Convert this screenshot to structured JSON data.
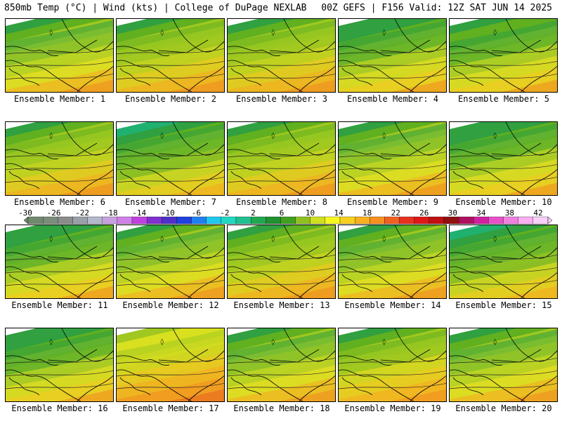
{
  "header": {
    "left": "850mb Temp (°C) | Wind (kts) | College of DuPage NEXLAB",
    "right": "00Z GEFS | F156 Valid: 12Z SAT JUN 14 2025"
  },
  "colorbar": {
    "tick_labels": [
      "-30",
      "-26",
      "-22",
      "-18",
      "-14",
      "-10",
      "-6",
      "-2",
      "2",
      "6",
      "10",
      "14",
      "18",
      "22",
      "26",
      "30",
      "34",
      "38",
      "42"
    ],
    "colors": [
      "#6f8a6f",
      "#7c8c7c",
      "#8c8c8c",
      "#9aa0a8",
      "#b4b8cc",
      "#c8a0e0",
      "#d080e8",
      "#c040e0",
      "#8030d0",
      "#5030c8",
      "#2040e0",
      "#2080f0",
      "#20c8f0",
      "#20d8c0",
      "#20c090",
      "#20a850",
      "#209030",
      "#40a020",
      "#90c020",
      "#d0e020",
      "#f8f820",
      "#f8d020",
      "#f8b020",
      "#f89020",
      "#f06020",
      "#e83020",
      "#e01818",
      "#c01010",
      "#901010",
      "#b01060",
      "#d020a0",
      "#e850c8",
      "#f080e0",
      "#f8b0f0",
      "#f8d0f8"
    ]
  },
  "panels": [
    {
      "label": "Ensemble Member: 1",
      "warm": 0.55
    },
    {
      "label": "Ensemble Member: 2",
      "warm": 0.6
    },
    {
      "label": "Ensemble Member: 3",
      "warm": 0.62
    },
    {
      "label": "Ensemble Member: 4",
      "warm": 0.5
    },
    {
      "label": "Ensemble Member: 5",
      "warm": 0.52
    },
    {
      "label": "Ensemble Member: 6",
      "warm": 0.62
    },
    {
      "label": "Ensemble Member: 7",
      "warm": 0.45
    },
    {
      "label": "Ensemble Member: 8",
      "warm": 0.62
    },
    {
      "label": "Ensemble Member: 9",
      "warm": 0.55
    },
    {
      "label": "Ensemble Member: 10",
      "warm": 0.5
    },
    {
      "label": "Ensemble Member: 11",
      "warm": 0.5
    },
    {
      "label": "Ensemble Member: 12",
      "warm": 0.55
    },
    {
      "label": "Ensemble Member: 13",
      "warm": 0.6
    },
    {
      "label": "Ensemble Member: 14",
      "warm": 0.55
    },
    {
      "label": "Ensemble Member: 15",
      "warm": 0.45
    },
    {
      "label": "Ensemble Member: 16",
      "warm": 0.5
    },
    {
      "label": "Ensemble Member: 17",
      "warm": 0.85
    },
    {
      "label": "Ensemble Member: 18",
      "warm": 0.55
    },
    {
      "label": "Ensemble Member: 19",
      "warm": 0.65
    },
    {
      "label": "Ensemble Member: 20",
      "warm": 0.55
    }
  ]
}
